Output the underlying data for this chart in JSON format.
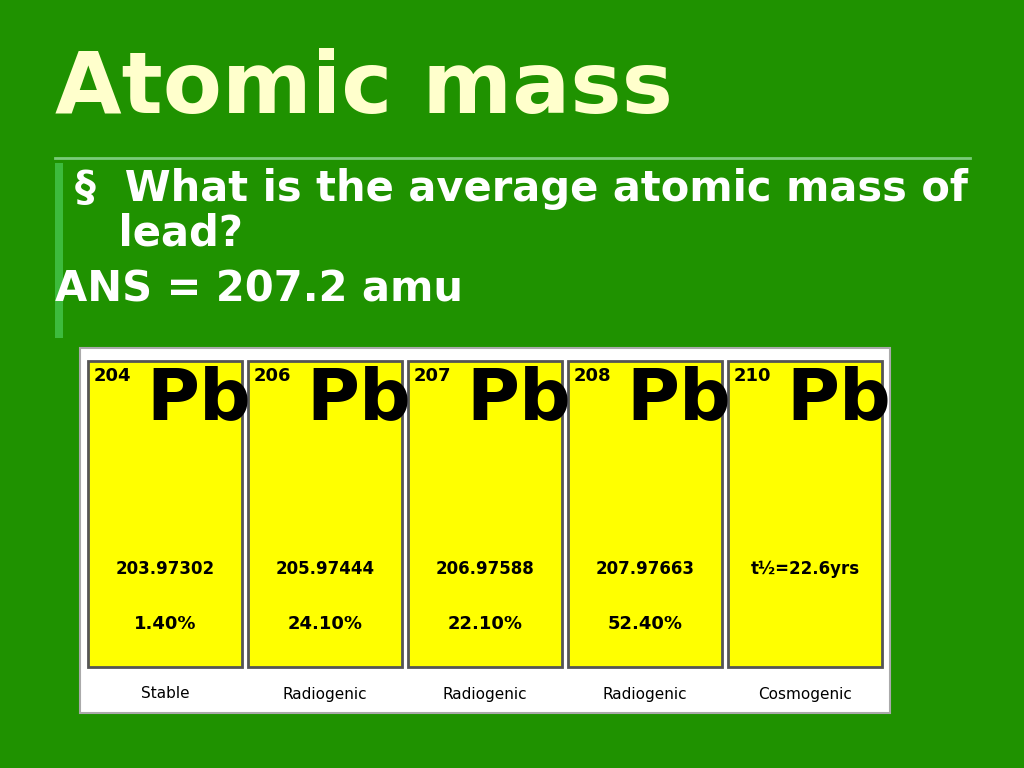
{
  "bg_color": "#1f9200",
  "title": "Atomic mass",
  "title_color": "#ffffcc",
  "title_fontsize": 62,
  "bullet_text_color": "#ffffff",
  "bullet_line1": "§  What is the average atomic mass of",
  "bullet_line2": "   lead?",
  "ans_text": "ANS = 207.2 amu",
  "bullet_fontsize": 30,
  "ans_fontsize": 30,
  "divider_color": "#7acc7a",
  "left_bar_color": "#3dbb3d",
  "isotopes": [
    {
      "mass_num": "204",
      "symbol": "Pb",
      "exact_mass": "203.97302",
      "abundance": "1.40%",
      "label": "Stable"
    },
    {
      "mass_num": "206",
      "symbol": "Pb",
      "exact_mass": "205.97444",
      "abundance": "24.10%",
      "label": "Radiogenic"
    },
    {
      "mass_num": "207",
      "symbol": "Pb",
      "exact_mass": "206.97588",
      "abundance": "22.10%",
      "label": "Radiogenic"
    },
    {
      "mass_num": "208",
      "symbol": "Pb",
      "exact_mass": "207.97663",
      "abundance": "52.40%",
      "label": "Radiogenic"
    },
    {
      "mass_num": "210",
      "symbol": "Pb",
      "exact_mass": "t½=22.6yrs",
      "abundance": "",
      "label": "Cosmogenic"
    }
  ],
  "table_bg": "#ffffff",
  "cell_bg": "#ffff00",
  "cell_border": "#555555",
  "cell_label_color": "#000000"
}
